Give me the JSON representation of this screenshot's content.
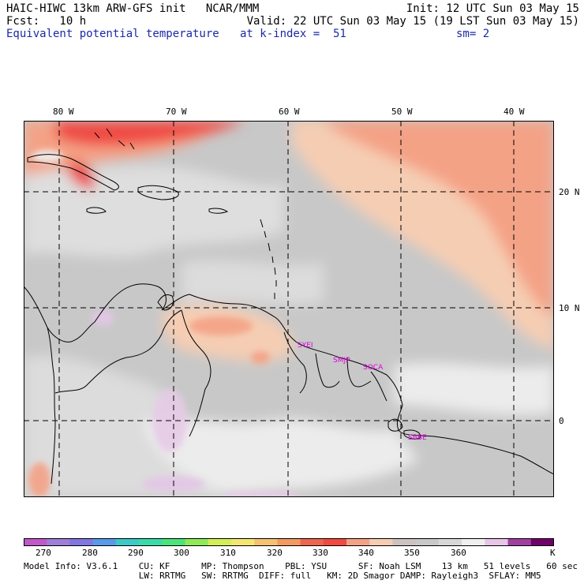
{
  "header": {
    "line1_left": "HAIC-HIWC 13km ARW-GFS init   NCAR/MMM",
    "line1_right": "Init: 12 UTC Sun 03 May 15",
    "line2_left": "Fcst:   10 h",
    "line2_right": "Valid: 22 UTC Sun 03 May 15 (19 LST Sun 03 May 15)",
    "field_name": "Equivalent potential temperature",
    "level": "at k-index =  51",
    "smoothing": "sm= 2"
  },
  "map": {
    "lon_labels": [
      "80 W",
      "70 W",
      "60 W",
      "50 W",
      "40 W"
    ],
    "lon_values": [
      -80,
      -70,
      -60,
      -50,
      -40
    ],
    "lat_labels": [
      "20 N",
      "10 N",
      "0"
    ],
    "lat_values": [
      20,
      10,
      0
    ],
    "extent": {
      "lon_min": -83.2,
      "lon_max": -36.8,
      "lat_min": -6.6,
      "lat_max": 26.3
    },
    "stations": [
      {
        "name": "SYEI",
        "lon": -58.0,
        "lat": 6.6
      },
      {
        "name": "SMJP",
        "lon": -55.2,
        "lat": 5.4
      },
      {
        "name": "SOCA",
        "lon": -52.4,
        "lat": 4.8
      },
      {
        "name": "SBBE",
        "lon": -48.5,
        "lat": -1.4
      }
    ]
  },
  "colorbar": {
    "unit": "K",
    "labels": [
      "270",
      "280",
      "290",
      "300",
      "310",
      "320",
      "330",
      "340",
      "350",
      "360"
    ],
    "colors": [
      "#c159c8",
      "#9f7fd8",
      "#8277e0",
      "#5a9ae8",
      "#3ccac8",
      "#3adba8",
      "#4be47a",
      "#90ea58",
      "#d2ef58",
      "#f4e672",
      "#f6c272",
      "#f29a62",
      "#ee6650",
      "#f04a42",
      "#f4a286",
      "#f5cdb3",
      "#ccc3c0",
      "#c8c8c8",
      "#d8d8d8",
      "#efefef",
      "#e8c4e8",
      "#a040a0",
      "#70006a"
    ]
  },
  "footer": {
    "line1": "Model Info: V3.6.1    CU: KF      MP: Thompson    PBL: YSU      SF: Noah LSM    13 km   51 levels   60 sec",
    "line2": "                      LW: RRTMG   SW: RRTMG  DIFF: full   KM: 2D Smagor DAMP: Rayleigh3  SFLAY: MM5"
  },
  "colors": {
    "title_blue": "#1a2aa8",
    "station_magenta": "#e000e0"
  }
}
